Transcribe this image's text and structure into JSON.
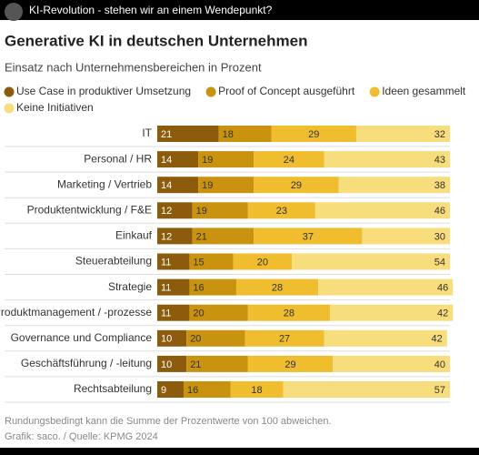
{
  "video": {
    "title": "KI-Revolution - stehen wir an einem Wendepunkt?"
  },
  "chart_data": {
    "type": "stacked-horizontal-bar",
    "title": "Generative KI in deutschen Unternehmen",
    "subtitle": "Einsatz nach Unternehmensbereichen in Prozent",
    "categories": [
      "IT",
      "Personal / HR",
      "Marketing / Vertrieb",
      "Produktentwicklung / F&E",
      "Einkauf",
      "Steuerabteilung",
      "Strategie",
      "Produktmanagement / -prozesse",
      "Governance und Compliance",
      "Geschäftsführung / -leitung",
      "Rechtsabteilung"
    ],
    "series": [
      {
        "name": "Use Case in produktiver Umsetzung",
        "color": "#8c5c0c",
        "values": [
          21,
          14,
          14,
          12,
          12,
          11,
          11,
          11,
          10,
          10,
          9
        ]
      },
      {
        "name": "Proof of Concept ausgeführt",
        "color": "#c9920f",
        "values": [
          18,
          19,
          19,
          19,
          21,
          15,
          16,
          20,
          20,
          21,
          16
        ]
      },
      {
        "name": "Ideen gesammelt",
        "color": "#f0bd2f",
        "values": [
          29,
          24,
          29,
          23,
          37,
          20,
          28,
          28,
          27,
          29,
          18
        ]
      },
      {
        "name": "Keine Initiativen",
        "color": "#f8dd7c",
        "values": [
          32,
          43,
          38,
          46,
          30,
          54,
          46,
          42,
          42,
          40,
          57
        ]
      }
    ],
    "xlim": [
      0,
      100
    ],
    "notes": [
      "Rundungsbedingt kann die Summe der Prozentwerte von 100 abweichen.",
      "Grafik: saco. / Quelle: KPMG 2024"
    ]
  }
}
